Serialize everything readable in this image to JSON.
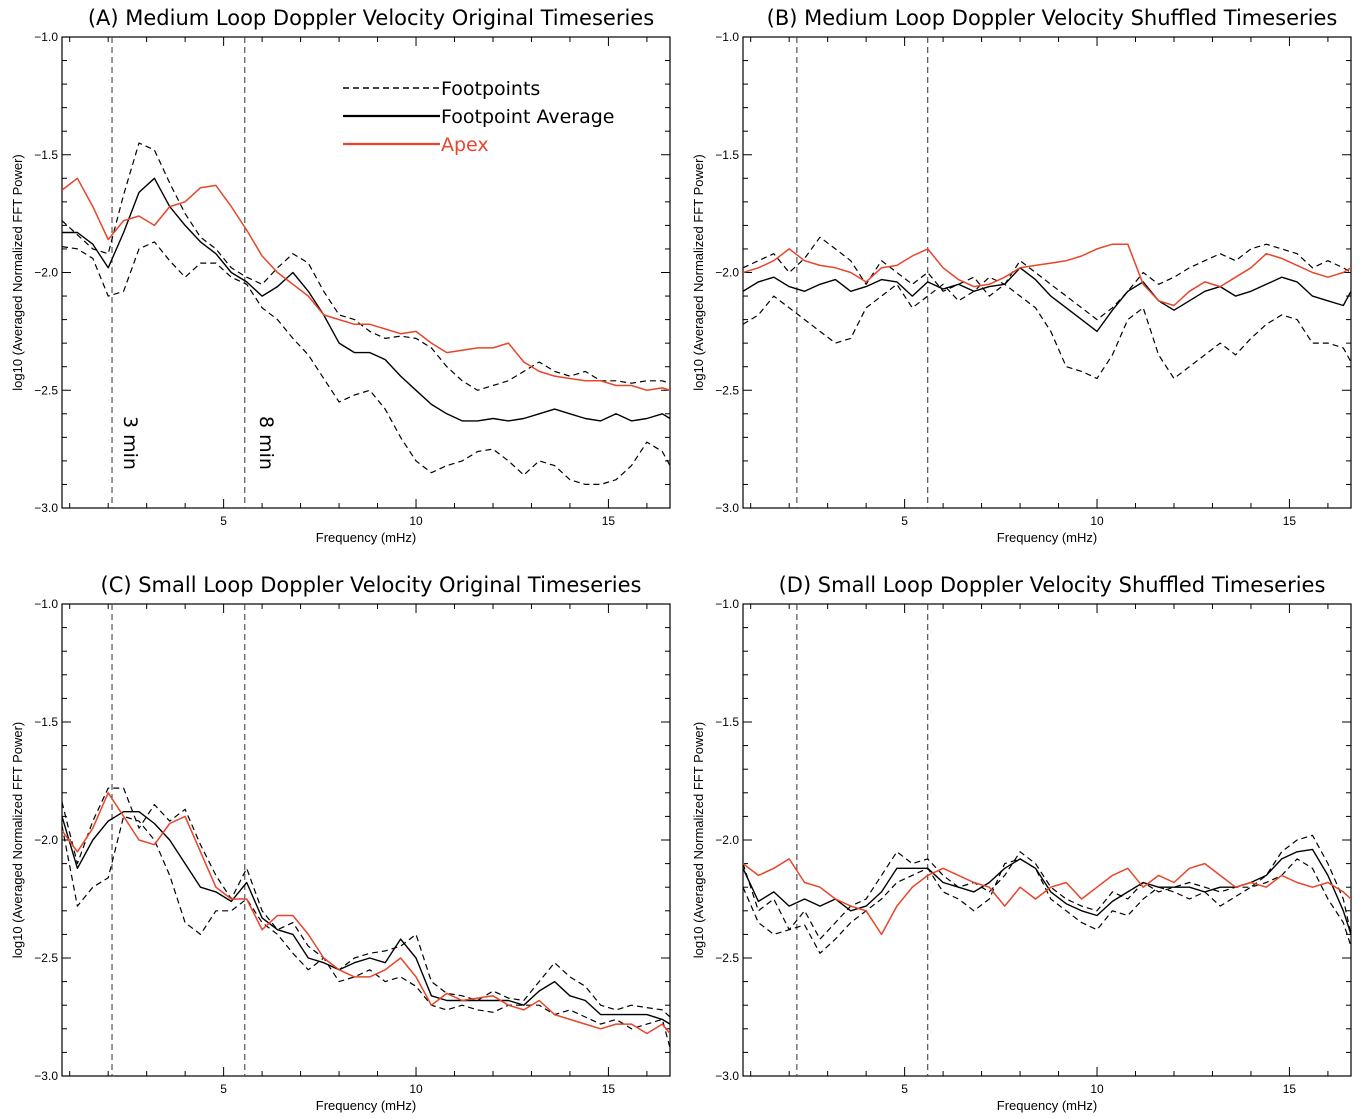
{
  "colors": {
    "apex": "#e8452a",
    "footpoint": "#000000",
    "marker": "#444444"
  },
  "legend": {
    "footpoints": "Footpoints",
    "average": "Footpoint Average",
    "apex": "Apex"
  },
  "annotations": [
    "3 min",
    "8 min"
  ],
  "chart_data": [
    {
      "type": "line",
      "title": "(A) Medium Loop Doppler Velocity Original Timeseries",
      "xlabel": "Frequency (mHz)",
      "ylabel": "log10 (Averaged Normalized FFT Power)",
      "xlim": [
        0.8,
        16.6
      ],
      "ylim": [
        -3.0,
        -1.0
      ],
      "xticks": [
        5,
        10,
        15
      ],
      "yticks": [
        -3.0,
        -2.5,
        -2.0,
        -1.5,
        -1.0
      ],
      "vlines": [
        2.1,
        5.55
      ],
      "x": [
        0.8,
        1.2,
        1.6,
        2.0,
        2.4,
        2.8,
        3.2,
        3.6,
        4.0,
        4.4,
        4.8,
        5.2,
        5.6,
        6.0,
        6.4,
        6.8,
        7.2,
        7.6,
        8.0,
        8.4,
        8.8,
        9.2,
        9.6,
        10.0,
        10.4,
        10.8,
        11.2,
        11.6,
        12.0,
        12.4,
        12.8,
        13.2,
        13.6,
        14.0,
        14.4,
        14.8,
        15.2,
        15.6,
        16.0,
        16.4,
        16.6
      ],
      "series": [
        {
          "name": "Footpoints",
          "style": "dashed",
          "values": [
            -1.78,
            -1.84,
            -1.9,
            -1.92,
            -1.67,
            -1.45,
            -1.48,
            -1.62,
            -1.75,
            -1.85,
            -1.9,
            -1.98,
            -2.02,
            -2.05,
            -1.98,
            -1.92,
            -1.96,
            -2.08,
            -2.18,
            -2.2,
            -2.25,
            -2.28,
            -2.27,
            -2.28,
            -2.32,
            -2.4,
            -2.46,
            -2.5,
            -2.48,
            -2.46,
            -2.42,
            -2.38,
            -2.42,
            -2.44,
            -2.42,
            -2.46,
            -2.46,
            -2.47,
            -2.46,
            -2.46,
            -2.47
          ]
        },
        {
          "name": "Footpoints",
          "style": "dashed",
          "values": [
            -1.89,
            -1.9,
            -1.94,
            -2.1,
            -2.08,
            -1.9,
            -1.87,
            -1.95,
            -2.02,
            -1.96,
            -1.96,
            -2.02,
            -2.05,
            -2.15,
            -2.2,
            -2.28,
            -2.35,
            -2.45,
            -2.55,
            -2.52,
            -2.5,
            -2.58,
            -2.7,
            -2.8,
            -2.85,
            -2.82,
            -2.8,
            -2.76,
            -2.75,
            -2.8,
            -2.86,
            -2.8,
            -2.82,
            -2.88,
            -2.9,
            -2.9,
            -2.88,
            -2.82,
            -2.72,
            -2.76,
            -2.82
          ]
        },
        {
          "name": "Footpoint Average",
          "style": "solid",
          "values": [
            -1.83,
            -1.83,
            -1.88,
            -1.98,
            -1.83,
            -1.66,
            -1.6,
            -1.72,
            -1.8,
            -1.87,
            -1.92,
            -2.0,
            -2.04,
            -2.1,
            -2.06,
            -2.0,
            -2.08,
            -2.18,
            -2.3,
            -2.34,
            -2.34,
            -2.37,
            -2.44,
            -2.5,
            -2.56,
            -2.6,
            -2.63,
            -2.63,
            -2.62,
            -2.63,
            -2.62,
            -2.6,
            -2.58,
            -2.6,
            -2.62,
            -2.63,
            -2.6,
            -2.63,
            -2.62,
            -2.6,
            -2.62
          ]
        },
        {
          "name": "Apex",
          "style": "apex",
          "values": [
            -1.65,
            -1.6,
            -1.72,
            -1.86,
            -1.78,
            -1.76,
            -1.8,
            -1.72,
            -1.7,
            -1.64,
            -1.63,
            -1.72,
            -1.82,
            -1.93,
            -2.0,
            -2.05,
            -2.1,
            -2.18,
            -2.2,
            -2.22,
            -2.22,
            -2.24,
            -2.26,
            -2.25,
            -2.3,
            -2.34,
            -2.33,
            -2.32,
            -2.32,
            -2.3,
            -2.38,
            -2.42,
            -2.44,
            -2.45,
            -2.46,
            -2.46,
            -2.48,
            -2.48,
            -2.5,
            -2.49,
            -2.5
          ]
        }
      ]
    },
    {
      "type": "line",
      "title": "(B) Medium Loop Doppler Velocity Shuffled Timeseries",
      "xlabel": "Frequency (mHz)",
      "ylabel": "log10 (Averaged Normalized FFT Power)",
      "xlim": [
        0.8,
        16.6
      ],
      "ylim": [
        -3.0,
        -1.0
      ],
      "xticks": [
        5,
        10,
        15
      ],
      "yticks": [
        -3.0,
        -2.5,
        -2.0,
        -1.5,
        -1.0
      ],
      "vlines": [
        2.2,
        5.6
      ],
      "x": [
        0.8,
        1.2,
        1.6,
        2.0,
        2.4,
        2.8,
        3.2,
        3.6,
        4.0,
        4.4,
        4.8,
        5.2,
        5.6,
        6.0,
        6.4,
        6.8,
        7.2,
        7.6,
        8.0,
        8.4,
        8.8,
        9.2,
        9.6,
        10.0,
        10.4,
        10.8,
        11.2,
        11.6,
        12.0,
        12.4,
        12.8,
        13.2,
        13.6,
        14.0,
        14.4,
        14.8,
        15.2,
        15.6,
        16.0,
        16.4,
        16.6
      ],
      "series": [
        {
          "name": "Footpoints",
          "style": "dashed",
          "values": [
            -1.98,
            -1.95,
            -1.92,
            -2.0,
            -1.94,
            -1.85,
            -1.9,
            -1.95,
            -2.05,
            -1.95,
            -2.0,
            -2.05,
            -2.0,
            -2.08,
            -2.05,
            -2.02,
            -2.1,
            -2.05,
            -1.95,
            -2.0,
            -2.05,
            -2.1,
            -2.15,
            -2.2,
            -2.15,
            -2.08,
            -2.0,
            -2.05,
            -2.02,
            -1.98,
            -1.95,
            -1.92,
            -1.95,
            -1.9,
            -1.88,
            -1.9,
            -1.92,
            -1.98,
            -1.95,
            -1.98,
            -2.0
          ]
        },
        {
          "name": "Footpoints",
          "style": "dashed",
          "values": [
            -2.22,
            -2.18,
            -2.1,
            -2.15,
            -2.2,
            -2.25,
            -2.3,
            -2.28,
            -2.15,
            -2.1,
            -2.05,
            -2.15,
            -2.1,
            -2.05,
            -2.12,
            -2.08,
            -2.02,
            -2.05,
            -2.1,
            -2.15,
            -2.25,
            -2.4,
            -2.42,
            -2.45,
            -2.35,
            -2.2,
            -2.15,
            -2.35,
            -2.45,
            -2.4,
            -2.35,
            -2.3,
            -2.35,
            -2.28,
            -2.22,
            -2.18,
            -2.2,
            -2.3,
            -2.3,
            -2.32,
            -2.38
          ]
        },
        {
          "name": "Footpoint Average",
          "style": "solid",
          "values": [
            -2.08,
            -2.04,
            -2.02,
            -2.06,
            -2.08,
            -2.05,
            -2.03,
            -2.08,
            -2.06,
            -2.03,
            -2.04,
            -2.1,
            -2.04,
            -2.07,
            -2.05,
            -2.08,
            -2.06,
            -2.05,
            -1.98,
            -2.03,
            -2.1,
            -2.15,
            -2.2,
            -2.25,
            -2.16,
            -2.08,
            -2.04,
            -2.12,
            -2.16,
            -2.12,
            -2.08,
            -2.06,
            -2.1,
            -2.08,
            -2.05,
            -2.02,
            -2.04,
            -2.1,
            -2.12,
            -2.14,
            -2.08
          ]
        },
        {
          "name": "Apex",
          "style": "apex",
          "values": [
            -2.0,
            -1.98,
            -1.95,
            -1.9,
            -1.95,
            -1.97,
            -1.98,
            -2.0,
            -2.04,
            -1.98,
            -1.97,
            -1.93,
            -1.9,
            -1.98,
            -2.03,
            -2.06,
            -2.05,
            -2.02,
            -1.98,
            -1.97,
            -1.96,
            -1.95,
            -1.93,
            -1.9,
            -1.88,
            -1.88,
            -2.05,
            -2.12,
            -2.14,
            -2.08,
            -2.04,
            -2.06,
            -2.02,
            -1.98,
            -1.92,
            -1.94,
            -1.97,
            -2.0,
            -2.02,
            -2.0,
            -1.98
          ]
        }
      ]
    },
    {
      "type": "line",
      "title": "(C) Small Loop Doppler Velocity Original Timeseries",
      "xlabel": "Frequency (mHz)",
      "ylabel": "log10 (Averaged Normalized FFT Power)",
      "xlim": [
        0.8,
        16.6
      ],
      "ylim": [
        -3.0,
        -1.0
      ],
      "xticks": [
        5,
        10,
        15
      ],
      "yticks": [
        -3.0,
        -2.5,
        -2.0,
        -1.5,
        -1.0
      ],
      "vlines": [
        2.1,
        5.55
      ],
      "x": [
        0.8,
        1.2,
        1.6,
        2.0,
        2.4,
        2.8,
        3.2,
        3.6,
        4.0,
        4.4,
        4.8,
        5.2,
        5.6,
        6.0,
        6.4,
        6.8,
        7.2,
        7.6,
        8.0,
        8.4,
        8.8,
        9.2,
        9.6,
        10.0,
        10.4,
        10.8,
        11.2,
        11.6,
        12.0,
        12.4,
        12.8,
        13.2,
        13.6,
        14.0,
        14.4,
        14.8,
        15.2,
        15.6,
        16.0,
        16.4,
        16.6
      ],
      "series": [
        {
          "name": "Footpoints",
          "style": "dashed",
          "values": [
            -1.84,
            -2.1,
            -1.92,
            -1.78,
            -1.78,
            -1.95,
            -1.85,
            -1.92,
            -1.87,
            -2.02,
            -2.15,
            -2.25,
            -2.12,
            -2.3,
            -2.38,
            -2.35,
            -2.45,
            -2.5,
            -2.55,
            -2.5,
            -2.48,
            -2.47,
            -2.45,
            -2.4,
            -2.6,
            -2.65,
            -2.66,
            -2.68,
            -2.64,
            -2.67,
            -2.68,
            -2.6,
            -2.52,
            -2.58,
            -2.62,
            -2.7,
            -2.72,
            -2.7,
            -2.71,
            -2.72,
            -2.75
          ]
        },
        {
          "name": "Footpoints",
          "style": "dashed",
          "values": [
            -1.94,
            -2.28,
            -2.2,
            -2.16,
            -1.9,
            -1.92,
            -2.0,
            -2.15,
            -2.35,
            -2.4,
            -2.3,
            -2.3,
            -2.25,
            -2.35,
            -2.4,
            -2.48,
            -2.55,
            -2.5,
            -2.6,
            -2.58,
            -2.55,
            -2.6,
            -2.58,
            -2.62,
            -2.7,
            -2.72,
            -2.7,
            -2.72,
            -2.73,
            -2.7,
            -2.7,
            -2.7,
            -2.74,
            -2.72,
            -2.75,
            -2.78,
            -2.76,
            -2.8,
            -2.78,
            -2.76,
            -2.88
          ]
        },
        {
          "name": "Footpoint Average",
          "style": "solid",
          "values": [
            -1.9,
            -2.12,
            -2.0,
            -1.92,
            -1.88,
            -1.88,
            -1.93,
            -2.0,
            -2.1,
            -2.2,
            -2.22,
            -2.26,
            -2.18,
            -2.33,
            -2.38,
            -2.4,
            -2.5,
            -2.52,
            -2.55,
            -2.52,
            -2.5,
            -2.52,
            -2.42,
            -2.5,
            -2.66,
            -2.68,
            -2.68,
            -2.68,
            -2.68,
            -2.68,
            -2.7,
            -2.64,
            -2.6,
            -2.66,
            -2.68,
            -2.74,
            -2.74,
            -2.74,
            -2.74,
            -2.76,
            -2.78
          ]
        },
        {
          "name": "Apex",
          "style": "apex",
          "values": [
            -1.96,
            -2.05,
            -1.95,
            -1.8,
            -1.9,
            -2.0,
            -2.02,
            -1.93,
            -1.9,
            -2.05,
            -2.2,
            -2.25,
            -2.25,
            -2.38,
            -2.32,
            -2.32,
            -2.4,
            -2.5,
            -2.55,
            -2.58,
            -2.58,
            -2.55,
            -2.5,
            -2.58,
            -2.7,
            -2.65,
            -2.68,
            -2.67,
            -2.66,
            -2.7,
            -2.72,
            -2.68,
            -2.74,
            -2.76,
            -2.78,
            -2.8,
            -2.78,
            -2.78,
            -2.82,
            -2.78,
            -2.82
          ]
        }
      ]
    },
    {
      "type": "line",
      "title": "(D) Small Loop Doppler Velocity Shuffled Timeseries",
      "xlabel": "Frequency (mHz)",
      "ylabel": "log10 (Averaged Normalized FFT Power)",
      "xlim": [
        0.8,
        16.6
      ],
      "ylim": [
        -3.0,
        -1.0
      ],
      "xticks": [
        5,
        10,
        15
      ],
      "yticks": [
        -3.0,
        -2.5,
        -2.0,
        -1.5,
        -1.0
      ],
      "vlines": [
        2.2,
        5.6
      ],
      "x": [
        0.8,
        1.2,
        1.6,
        2.0,
        2.4,
        2.8,
        3.2,
        3.6,
        4.0,
        4.4,
        4.8,
        5.2,
        5.6,
        6.0,
        6.4,
        6.8,
        7.2,
        7.6,
        8.0,
        8.4,
        8.8,
        9.2,
        9.6,
        10.0,
        10.4,
        10.8,
        11.2,
        11.6,
        12.0,
        12.4,
        12.8,
        13.2,
        13.6,
        14.0,
        14.4,
        14.8,
        15.2,
        15.6,
        16.0,
        16.4,
        16.6
      ],
      "series": [
        {
          "name": "Footpoints",
          "style": "dashed",
          "values": [
            -2.1,
            -2.3,
            -2.25,
            -2.38,
            -2.3,
            -2.42,
            -2.35,
            -2.28,
            -2.25,
            -2.15,
            -2.05,
            -2.1,
            -2.08,
            -2.15,
            -2.2,
            -2.18,
            -2.22,
            -2.15,
            -2.05,
            -2.1,
            -2.2,
            -2.25,
            -2.28,
            -2.3,
            -2.22,
            -2.25,
            -2.18,
            -2.22,
            -2.2,
            -2.18,
            -2.2,
            -2.22,
            -2.2,
            -2.2,
            -2.15,
            -2.05,
            -2.0,
            -1.98,
            -2.1,
            -2.25,
            -2.4
          ]
        },
        {
          "name": "Footpoints",
          "style": "dashed",
          "values": [
            -2.2,
            -2.35,
            -2.4,
            -2.38,
            -2.36,
            -2.48,
            -2.42,
            -2.35,
            -2.3,
            -2.25,
            -2.18,
            -2.15,
            -2.12,
            -2.22,
            -2.25,
            -2.3,
            -2.25,
            -2.1,
            -2.08,
            -2.12,
            -2.25,
            -2.3,
            -2.35,
            -2.38,
            -2.3,
            -2.32,
            -2.25,
            -2.2,
            -2.22,
            -2.25,
            -2.22,
            -2.28,
            -2.24,
            -2.2,
            -2.18,
            -2.15,
            -2.08,
            -2.12,
            -2.25,
            -2.35,
            -2.45
          ]
        },
        {
          "name": "Footpoint Average",
          "style": "solid",
          "values": [
            -2.12,
            -2.26,
            -2.22,
            -2.28,
            -2.25,
            -2.28,
            -2.25,
            -2.3,
            -2.28,
            -2.22,
            -2.12,
            -2.12,
            -2.12,
            -2.18,
            -2.2,
            -2.22,
            -2.18,
            -2.12,
            -2.08,
            -2.12,
            -2.22,
            -2.27,
            -2.3,
            -2.32,
            -2.26,
            -2.22,
            -2.18,
            -2.2,
            -2.2,
            -2.2,
            -2.22,
            -2.2,
            -2.2,
            -2.18,
            -2.15,
            -2.08,
            -2.05,
            -2.04,
            -2.15,
            -2.3,
            -2.4
          ]
        },
        {
          "name": "Apex",
          "style": "apex",
          "values": [
            -2.1,
            -2.15,
            -2.12,
            -2.08,
            -2.18,
            -2.2,
            -2.25,
            -2.28,
            -2.3,
            -2.4,
            -2.28,
            -2.2,
            -2.15,
            -2.12,
            -2.15,
            -2.18,
            -2.2,
            -2.28,
            -2.2,
            -2.25,
            -2.2,
            -2.18,
            -2.25,
            -2.2,
            -2.15,
            -2.12,
            -2.2,
            -2.15,
            -2.18,
            -2.12,
            -2.1,
            -2.15,
            -2.2,
            -2.18,
            -2.2,
            -2.15,
            -2.18,
            -2.2,
            -2.18,
            -2.22,
            -2.25
          ]
        }
      ]
    }
  ]
}
